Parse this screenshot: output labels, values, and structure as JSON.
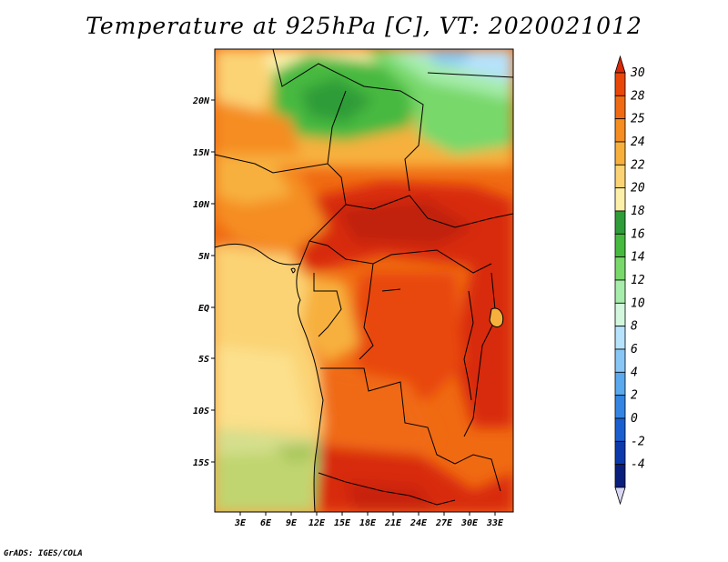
{
  "title": "Temperature at 925hPa [C], VT: 2020021012",
  "credit": "GrADS: IGES/COLA",
  "map": {
    "lat_labels": [
      "20N",
      "15N",
      "10N",
      "5N",
      "EQ",
      "5S",
      "10S",
      "15S"
    ],
    "lon_labels": [
      "3E",
      "6E",
      "9E",
      "12E",
      "15E",
      "18E",
      "21E",
      "24E",
      "27E",
      "30E",
      "33E"
    ]
  },
  "colorbar": {
    "units": "C",
    "levels": [
      "30",
      "28",
      "25",
      "24",
      "22",
      "20",
      "18",
      "16",
      "14",
      "12",
      "10",
      "8",
      "6",
      "4",
      "2",
      "0",
      "-2",
      "-4"
    ],
    "colors": [
      "#d82a08",
      "#e84708",
      "#f06a12",
      "#f58d20",
      "#f7b03c",
      "#fbd374",
      "#fcf0a8",
      "#2e9c38",
      "#46b93f",
      "#78d86a",
      "#a6ecaa",
      "#d2f7dd",
      "#b6e2fb",
      "#88c7f5",
      "#5aa8ee",
      "#3485e3",
      "#1a5fd0",
      "#0c3aac",
      "#0a1e7c",
      "#d8d8f4"
    ]
  }
}
